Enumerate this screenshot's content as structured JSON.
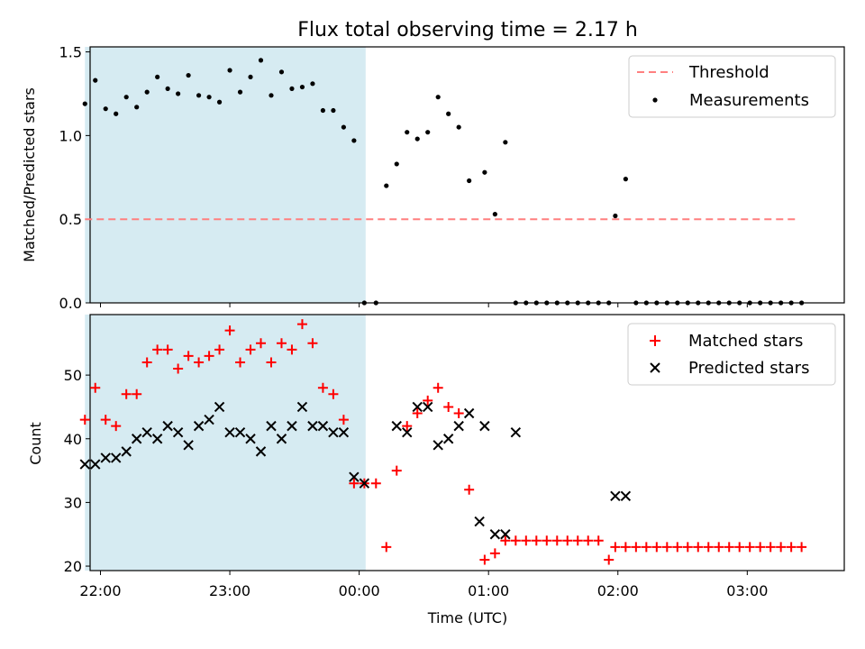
{
  "chart_data": {
    "type": "scatter",
    "title": "Flux total observing time = 2.17 h",
    "xlabel": "Time (UTC)",
    "x_unit": "hours relative to 00:00 UTC",
    "xlim": [
      -2.08,
      3.75
    ],
    "xticks": [
      {
        "value": -2,
        "label": "22:00"
      },
      {
        "value": -1,
        "label": "23:00"
      },
      {
        "value": 0,
        "label": "00:00"
      },
      {
        "value": 1,
        "label": "01:00"
      },
      {
        "value": 2,
        "label": "02:00"
      },
      {
        "value": 3,
        "label": "03:00"
      }
    ],
    "shaded_region": {
      "x": [
        -2.12,
        0.05
      ],
      "color": "#add8e6"
    },
    "panels": [
      {
        "name": "ratio",
        "ylabel": "Matched/Predicted stars",
        "ylim": [
          0,
          1.53
        ],
        "yticks": [
          "0.0",
          "0.5",
          "1.0",
          "1.5"
        ],
        "ytick_values": [
          0,
          0.5,
          1.0,
          1.5
        ],
        "legend_position": "upper right",
        "threshold": {
          "label": "Threshold",
          "value": 0.5,
          "x": [
            -2.12,
            3.38
          ],
          "color": "#ff7f7f"
        },
        "measurements": {
          "label": "Measurements",
          "color": "#000000",
          "x": [
            -2.12,
            -2.04,
            -1.96,
            -1.88,
            -1.8,
            -1.72,
            -1.64,
            -1.56,
            -1.48,
            -1.4,
            -1.32,
            -1.24,
            -1.16,
            -1.08,
            -1.0,
            -0.92,
            -0.84,
            -0.76,
            -0.68,
            -0.6,
            -0.52,
            -0.44,
            -0.36,
            -0.28,
            -0.2,
            -0.12,
            -0.04,
            0.04,
            0.13,
            0.21,
            0.29,
            0.37,
            0.45,
            0.53,
            0.61,
            0.69,
            0.77,
            0.85,
            0.97,
            1.05,
            1.13,
            1.21,
            1.29,
            1.37,
            1.45,
            1.53,
            1.61,
            1.69,
            1.77,
            1.85,
            1.93,
            1.98,
            2.06,
            2.14,
            2.22,
            2.3,
            2.38,
            2.46,
            2.54,
            2.62,
            2.7,
            2.78,
            2.86,
            2.94,
            3.02,
            3.1,
            3.18,
            3.26,
            3.34,
            3.42
          ],
          "y": [
            1.19,
            1.33,
            1.16,
            1.13,
            1.23,
            1.17,
            1.26,
            1.35,
            1.28,
            1.25,
            1.36,
            1.24,
            1.23,
            1.2,
            1.39,
            1.26,
            1.35,
            1.45,
            1.24,
            1.38,
            1.28,
            1.29,
            1.31,
            1.15,
            1.15,
            1.05,
            0.97,
            0.0,
            0.0,
            0.7,
            0.83,
            1.02,
            0.98,
            1.02,
            1.23,
            1.13,
            1.05,
            0.73,
            0.78,
            0.53,
            0.96,
            0.0,
            0.0,
            0.0,
            0.0,
            0.0,
            0.0,
            0.0,
            0.0,
            0.0,
            0.0,
            0.52,
            0.74,
            0.0,
            0.0,
            0.0,
            0.0,
            0.0,
            0.0,
            0.0,
            0.0,
            0.0,
            0.0,
            0.0,
            0.0,
            0.0,
            0.0,
            0.0,
            0.0,
            0.0
          ]
        }
      },
      {
        "name": "counts",
        "ylabel": "Count",
        "ylim": [
          19.3,
          59.5
        ],
        "yticks": [
          "20",
          "30",
          "40",
          "50"
        ],
        "ytick_values": [
          20,
          30,
          40,
          50
        ],
        "legend_position": "upper right",
        "matched": {
          "label": "Matched stars",
          "color": "#ff0000",
          "x": [
            -2.12,
            -2.04,
            -1.96,
            -1.88,
            -1.8,
            -1.72,
            -1.64,
            -1.56,
            -1.48,
            -1.4,
            -1.32,
            -1.24,
            -1.16,
            -1.08,
            -1.0,
            -0.92,
            -0.84,
            -0.76,
            -0.68,
            -0.6,
            -0.52,
            -0.44,
            -0.36,
            -0.28,
            -0.2,
            -0.12,
            -0.04,
            0.04,
            0.13,
            0.21,
            0.29,
            0.37,
            0.45,
            0.53,
            0.61,
            0.69,
            0.77,
            0.85,
            0.97,
            1.05,
            1.13,
            1.21,
            1.29,
            1.37,
            1.45,
            1.53,
            1.61,
            1.69,
            1.77,
            1.85,
            1.93,
            1.98,
            2.06,
            2.14,
            2.22,
            2.3,
            2.38,
            2.46,
            2.54,
            2.62,
            2.7,
            2.78,
            2.86,
            2.94,
            3.02,
            3.1,
            3.18,
            3.26,
            3.34,
            3.42
          ],
          "y": [
            43,
            48,
            43,
            42,
            47,
            47,
            52,
            54,
            54,
            51,
            53,
            52,
            53,
            54,
            57,
            52,
            54,
            55,
            52,
            55,
            54,
            58,
            55,
            48,
            47,
            43,
            33,
            33,
            33,
            23,
            35,
            42,
            44,
            46,
            48,
            45,
            44,
            32,
            21,
            22,
            24,
            24,
            24,
            24,
            24,
            24,
            24,
            24,
            24,
            24,
            21,
            23,
            23,
            23,
            23,
            23,
            23,
            23,
            23,
            23,
            23,
            23,
            23,
            23,
            23,
            23,
            23,
            23,
            23,
            23
          ]
        },
        "predicted": {
          "label": "Predicted stars",
          "color": "#000000",
          "x": [
            -2.12,
            -2.04,
            -1.96,
            -1.88,
            -1.8,
            -1.72,
            -1.64,
            -1.56,
            -1.48,
            -1.4,
            -1.32,
            -1.24,
            -1.16,
            -1.08,
            -1.0,
            -0.92,
            -0.84,
            -0.76,
            -0.68,
            -0.6,
            -0.52,
            -0.44,
            -0.36,
            -0.28,
            -0.2,
            -0.12,
            -0.04,
            0.04,
            0.29,
            0.37,
            0.45,
            0.53,
            0.61,
            0.69,
            0.77,
            0.85,
            0.93,
            0.97,
            1.05,
            1.13,
            1.21,
            1.98,
            2.06
          ],
          "y": [
            36,
            36,
            37,
            37,
            38,
            40,
            41,
            40,
            42,
            41,
            39,
            42,
            43,
            45,
            41,
            41,
            40,
            38,
            42,
            40,
            42,
            45,
            42,
            42,
            41,
            41,
            34,
            33,
            42,
            41,
            45,
            45,
            39,
            40,
            42,
            44,
            27,
            42,
            25,
            25,
            41,
            31,
            31
          ]
        }
      }
    ]
  }
}
